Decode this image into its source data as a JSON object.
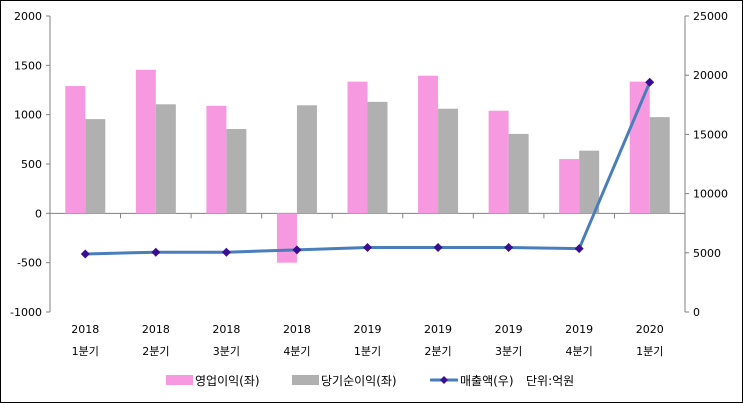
{
  "chart_data": {
    "type": "bar",
    "categories": [
      [
        "2018",
        "1분기"
      ],
      [
        "2018",
        "2분기"
      ],
      [
        "2018",
        "3분기"
      ],
      [
        "2018",
        "4분기"
      ],
      [
        "2019",
        "1분기"
      ],
      [
        "2019",
        "2분기"
      ],
      [
        "2019",
        "3분기"
      ],
      [
        "2019",
        "4분기"
      ],
      [
        "2020",
        "1분기"
      ]
    ],
    "series": [
      {
        "name": "영업이익(좌)",
        "type": "bar",
        "axis": "left",
        "color": "#F799E0",
        "values": [
          1290,
          1455,
          1090,
          -500,
          1335,
          1395,
          1040,
          550,
          1335
        ]
      },
      {
        "name": "당기순이익(좌)",
        "type": "bar",
        "axis": "left",
        "color": "#B0B0B0",
        "values": [
          955,
          1105,
          855,
          1095,
          1130,
          1060,
          805,
          635,
          975
        ]
      },
      {
        "name": "매출액(우)",
        "type": "line",
        "axis": "right",
        "color": "#4A7EBB",
        "marker_color": "#3A0E92",
        "values": [
          4900,
          5050,
          5050,
          5250,
          5450,
          5450,
          5450,
          5350,
          19400
        ]
      }
    ],
    "left_axis": {
      "min": -1000,
      "max": 2000,
      "ticks": [
        -1000,
        -500,
        0,
        500,
        1000,
        1500,
        2000
      ]
    },
    "right_axis": {
      "min": 0,
      "max": 25000,
      "ticks": [
        0,
        5000,
        10000,
        15000,
        20000,
        25000
      ]
    },
    "unit_note": "단위:억원",
    "legend_position": "bottom",
    "grid": false
  }
}
